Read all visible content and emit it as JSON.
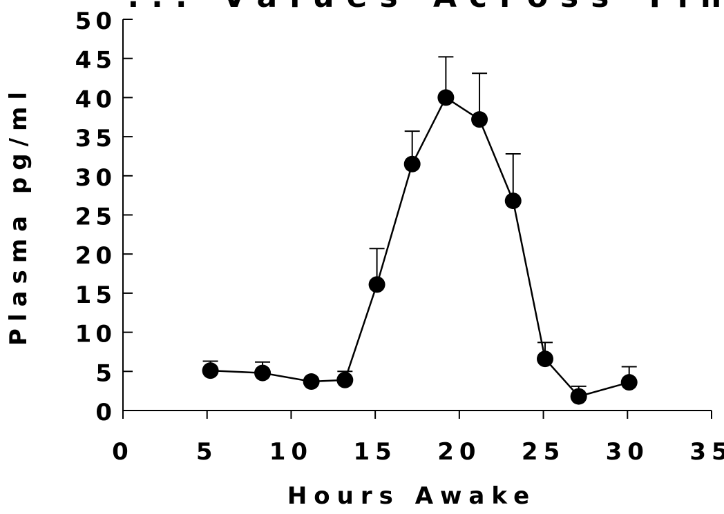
{
  "chart_data": {
    "type": "line",
    "title": "... Values Across Time",
    "xlabel": "Hours Awake",
    "ylabel": "Plasma pg/ml",
    "xlim": [
      0,
      35
    ],
    "ylim": [
      0,
      50
    ],
    "xticks": [
      "0",
      "5",
      "10",
      "15",
      "20",
      "25",
      "30",
      "35"
    ],
    "yticks": [
      "0",
      "5",
      "10",
      "15",
      "20",
      "25",
      "30",
      "35",
      "40",
      "45",
      "50"
    ],
    "grid": false,
    "legend": "none",
    "series": [
      {
        "x": [
          5.2,
          8.3,
          11.2,
          13.2,
          15.1,
          17.2,
          19.2,
          21.2,
          23.2,
          25.1,
          27.1,
          30.1
        ],
        "y": [
          5.1,
          4.8,
          3.7,
          3.9,
          16.1,
          31.5,
          40.0,
          37.2,
          26.8,
          6.6,
          1.8,
          3.6
        ],
        "error_upper": [
          1.2,
          1.4,
          0.0,
          1.1,
          4.6,
          4.2,
          5.2,
          5.9,
          6.0,
          2.1,
          1.3,
          2.0
        ]
      }
    ],
    "colors": {
      "line": "#000000",
      "marker": "#000000",
      "axis": "#000000"
    }
  }
}
